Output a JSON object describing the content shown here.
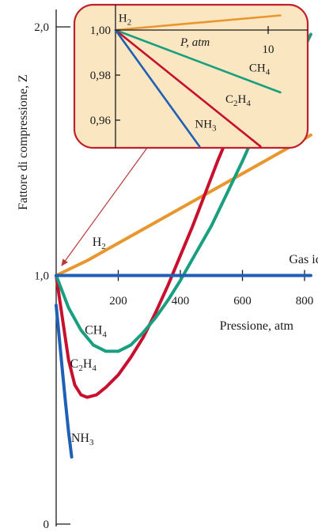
{
  "chart_data": [
    {
      "type": "line",
      "title": "",
      "xlabel": "Pressione, atm",
      "ylabel": "Fattore di compressione, Z",
      "xlim": [
        0,
        820
      ],
      "ylim": [
        0,
        2.05
      ],
      "x_ticks": [
        200,
        400,
        600,
        800
      ],
      "x_tick_labels": [
        "200",
        "400",
        "600",
        "800"
      ],
      "y_ticks": [
        0,
        1.0,
        2.0
      ],
      "y_tick_labels": [
        "0",
        "1,0",
        "2,0"
      ],
      "ideal_label": "Gas ideale",
      "colors": {
        "H2": "#e8962e",
        "CH4": "#1a9e80",
        "C2H4": "#c8102e",
        "NH3": "#1f5fb5",
        "ideal": "#1f5fb5"
      },
      "series": [
        {
          "name": "Gas ideale",
          "key": "ideal",
          "label_parts": [
            "Gas ideale"
          ],
          "x": [
            0,
            820
          ],
          "y": [
            1.0,
            1.0
          ]
        },
        {
          "name": "H₂",
          "key": "H2",
          "label_parts": [
            "H",
            "2",
            ""
          ],
          "x": [
            0,
            100,
            200,
            300,
            400,
            500,
            600,
            700,
            800,
            820
          ],
          "y": [
            1.0,
            1.06,
            1.13,
            1.2,
            1.27,
            1.34,
            1.41,
            1.48,
            1.55,
            1.565
          ]
        },
        {
          "name": "CH₄",
          "key": "CH4",
          "label_parts": [
            "CH",
            "4",
            ""
          ],
          "x": [
            0,
            40,
            80,
            120,
            160,
            200,
            240,
            280,
            320,
            360,
            400,
            450,
            500,
            550,
            600,
            650,
            700,
            750,
            800,
            820
          ],
          "y": [
            1.0,
            0.87,
            0.78,
            0.72,
            0.695,
            0.695,
            0.72,
            0.77,
            0.83,
            0.9,
            0.98,
            1.09,
            1.2,
            1.33,
            1.46,
            1.6,
            1.73,
            1.84,
            1.92,
            1.97
          ]
        },
        {
          "name": "C₂H₄",
          "key": "C2H4",
          "label_parts": [
            "C",
            "2",
            "H",
            "4",
            ""
          ],
          "x": [
            0,
            20,
            40,
            60,
            80,
            100,
            130,
            160,
            200,
            240,
            280,
            320,
            360,
            400,
            440,
            480,
            520,
            560,
            600,
            640,
            680,
            720
          ],
          "y": [
            1.0,
            0.83,
            0.66,
            0.56,
            0.52,
            0.51,
            0.52,
            0.55,
            0.6,
            0.67,
            0.75,
            0.85,
            0.96,
            1.08,
            1.2,
            1.33,
            1.46,
            1.58,
            1.7,
            1.82,
            1.94,
            2.05
          ]
        },
        {
          "name": "NH₃",
          "key": "NH3",
          "label_parts": [
            "NH",
            "3",
            ""
          ],
          "x": [
            0,
            10,
            20,
            30,
            40,
            50
          ],
          "y": [
            0.88,
            0.75,
            0.62,
            0.49,
            0.37,
            0.27
          ]
        }
      ]
    },
    {
      "type": "line",
      "title": "",
      "xlabel": "P, atm",
      "ylabel": "",
      "xlim": [
        0,
        10.8
      ],
      "ylim": [
        0.943,
        1.008
      ],
      "x_ticks": [
        10
      ],
      "x_tick_labels": [
        "10"
      ],
      "y_ticks": [
        0.96,
        0.98,
        1.0
      ],
      "y_tick_labels": [
        "0,96",
        "0,98",
        "1,00"
      ],
      "series": [
        {
          "name": "H₂",
          "key": "H2",
          "label_parts": [
            "H",
            "2",
            ""
          ],
          "x": [
            0,
            10.8
          ],
          "y": [
            1.0,
            1.0065
          ]
        },
        {
          "name": "CH₄",
          "key": "CH4",
          "label_parts": [
            "CH",
            "4",
            ""
          ],
          "x": [
            0,
            10.8
          ],
          "y": [
            1.0,
            0.9723
          ]
        },
        {
          "name": "C₂H₄",
          "key": "C2H4",
          "label_parts": [
            "C",
            "2",
            "H",
            "4",
            ""
          ],
          "x": [
            0,
            9.5
          ],
          "y": [
            1.0,
            0.9483
          ]
        },
        {
          "name": "NH₃",
          "key": "NH3",
          "label_parts": [
            "NH",
            "3",
            ""
          ],
          "x": [
            0,
            5.5
          ],
          "y": [
            1.0,
            0.9483
          ]
        }
      ]
    }
  ]
}
